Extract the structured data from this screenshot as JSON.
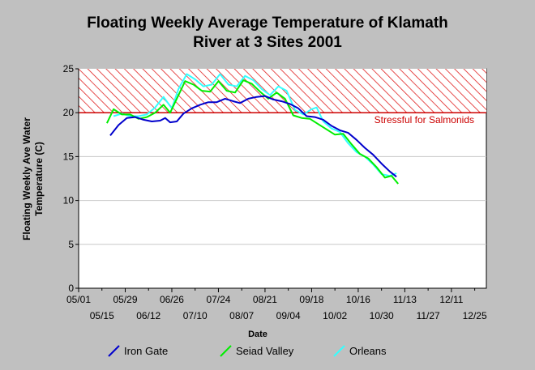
{
  "chart_data": {
    "type": "line",
    "title_line1": "Floating Weekly Average Temperature of Klamath",
    "title_line2": "River at 3 Sites 2001",
    "ylabel_line1": "Floating Weekly Ave Water",
    "ylabel_line2": "Temperature (C)",
    "xlabel": "Date",
    "ylim": [
      0,
      25
    ],
    "y_ticks": [
      0,
      5,
      10,
      15,
      20,
      25
    ],
    "x_range_dates": [
      "2001-05-01",
      "2002-01-01"
    ],
    "x_ticks_upper": [
      {
        "date": "2001-05-01",
        "label": "05/01"
      },
      {
        "date": "2001-05-29",
        "label": "05/29"
      },
      {
        "date": "2001-06-26",
        "label": "06/26"
      },
      {
        "date": "2001-07-24",
        "label": "07/24"
      },
      {
        "date": "2001-08-21",
        "label": "08/21"
      },
      {
        "date": "2001-09-18",
        "label": "09/18"
      },
      {
        "date": "2001-10-16",
        "label": "10/16"
      },
      {
        "date": "2001-11-13",
        "label": "11/13"
      },
      {
        "date": "2001-12-11",
        "label": "12/11"
      }
    ],
    "x_ticks_lower": [
      {
        "date": "2001-05-15",
        "label": "05/15"
      },
      {
        "date": "2001-06-12",
        "label": "06/12"
      },
      {
        "date": "2001-07-10",
        "label": "07/10"
      },
      {
        "date": "2001-08-07",
        "label": "08/07"
      },
      {
        "date": "2001-09-04",
        "label": "09/04"
      },
      {
        "date": "2001-10-02",
        "label": "10/02"
      },
      {
        "date": "2001-10-30",
        "label": "10/30"
      },
      {
        "date": "2001-11-27",
        "label": "11/27"
      },
      {
        "date": "2001-12-25",
        "label": "12/25"
      }
    ],
    "grid": true,
    "legend_position": "bottom",
    "threshold": {
      "y_from": 20,
      "y_to": 25,
      "label": "Stressful for Salmonids",
      "color": "#cc0000"
    },
    "series": [
      {
        "name": "Iron Gate",
        "color": "#0000cc",
        "points": [
          [
            "2001-05-20",
            17.4
          ],
          [
            "2001-05-25",
            18.6
          ],
          [
            "2001-05-30",
            19.4
          ],
          [
            "2001-06-04",
            19.5
          ],
          [
            "2001-06-09",
            19.2
          ],
          [
            "2001-06-14",
            19.0
          ],
          [
            "2001-06-19",
            19.1
          ],
          [
            "2001-06-22",
            19.4
          ],
          [
            "2001-06-25",
            18.9
          ],
          [
            "2001-06-29",
            19.0
          ],
          [
            "2001-07-03",
            19.9
          ],
          [
            "2001-07-08",
            20.5
          ],
          [
            "2001-07-13",
            20.9
          ],
          [
            "2001-07-18",
            21.2
          ],
          [
            "2001-07-23",
            21.2
          ],
          [
            "2001-07-28",
            21.6
          ],
          [
            "2001-08-02",
            21.3
          ],
          [
            "2001-08-06",
            21.1
          ],
          [
            "2001-08-11",
            21.6
          ],
          [
            "2001-08-16",
            21.8
          ],
          [
            "2001-08-21",
            21.9
          ],
          [
            "2001-08-26",
            21.5
          ],
          [
            "2001-08-31",
            21.3
          ],
          [
            "2001-09-05",
            21.0
          ],
          [
            "2001-09-10",
            20.5
          ],
          [
            "2001-09-15",
            19.6
          ],
          [
            "2001-09-20",
            19.5
          ],
          [
            "2001-09-25",
            19.2
          ],
          [
            "2001-09-30",
            18.5
          ],
          [
            "2001-10-05",
            18.0
          ],
          [
            "2001-10-10",
            17.7
          ],
          [
            "2001-10-15",
            16.9
          ],
          [
            "2001-10-20",
            16.0
          ],
          [
            "2001-10-25",
            15.2
          ],
          [
            "2001-10-30",
            14.2
          ],
          [
            "2001-11-04",
            13.3
          ],
          [
            "2001-11-08",
            12.7
          ]
        ]
      },
      {
        "name": "Seiad Valley",
        "color": "#00ee00",
        "points": [
          [
            "2001-05-18",
            18.8
          ],
          [
            "2001-05-22",
            20.4
          ],
          [
            "2001-05-27",
            19.8
          ],
          [
            "2001-06-01",
            19.8
          ],
          [
            "2001-06-06",
            19.3
          ],
          [
            "2001-06-11",
            19.5
          ],
          [
            "2001-06-16",
            20.0
          ],
          [
            "2001-06-21",
            20.9
          ],
          [
            "2001-06-25",
            20.0
          ],
          [
            "2001-06-29",
            21.6
          ],
          [
            "2001-07-04",
            23.6
          ],
          [
            "2001-07-09",
            23.2
          ],
          [
            "2001-07-14",
            22.5
          ],
          [
            "2001-07-19",
            22.4
          ],
          [
            "2001-07-24",
            23.6
          ],
          [
            "2001-07-29",
            22.5
          ],
          [
            "2001-08-03",
            22.3
          ],
          [
            "2001-08-08",
            23.7
          ],
          [
            "2001-08-13",
            23.3
          ],
          [
            "2001-08-18",
            22.4
          ],
          [
            "2001-08-23",
            21.6
          ],
          [
            "2001-08-28",
            22.3
          ],
          [
            "2001-09-02",
            21.6
          ],
          [
            "2001-09-07",
            19.7
          ],
          [
            "2001-09-12",
            19.4
          ],
          [
            "2001-09-17",
            19.3
          ],
          [
            "2001-09-22",
            18.7
          ],
          [
            "2001-09-27",
            18.1
          ],
          [
            "2001-10-02",
            17.5
          ],
          [
            "2001-10-07",
            17.6
          ],
          [
            "2001-10-12",
            16.4
          ],
          [
            "2001-10-17",
            15.3
          ],
          [
            "2001-10-22",
            14.8
          ],
          [
            "2001-10-27",
            13.8
          ],
          [
            "2001-11-01",
            12.6
          ],
          [
            "2001-11-05",
            12.8
          ],
          [
            "2001-11-09",
            11.9
          ]
        ]
      },
      {
        "name": "Orleans",
        "color": "#33ffff",
        "points": [
          [
            "2001-05-22",
            19.6
          ],
          [
            "2001-05-27",
            19.9
          ],
          [
            "2001-06-01",
            19.6
          ],
          [
            "2001-06-06",
            19.6
          ],
          [
            "2001-06-11",
            19.8
          ],
          [
            "2001-06-16",
            20.6
          ],
          [
            "2001-06-21",
            21.8
          ],
          [
            "2001-06-26",
            20.5
          ],
          [
            "2001-06-30",
            22.7
          ],
          [
            "2001-07-05",
            24.4
          ],
          [
            "2001-07-10",
            23.8
          ],
          [
            "2001-07-15",
            23.0
          ],
          [
            "2001-07-20",
            23.2
          ],
          [
            "2001-07-25",
            24.4
          ],
          [
            "2001-07-30",
            23.2
          ],
          [
            "2001-08-04",
            23.0
          ],
          [
            "2001-08-09",
            24.2
          ],
          [
            "2001-08-14",
            23.7
          ],
          [
            "2001-08-19",
            22.7
          ],
          [
            "2001-08-24",
            22.0
          ],
          [
            "2001-08-29",
            23.0
          ],
          [
            "2001-09-03",
            22.5
          ],
          [
            "2001-09-08",
            20.3
          ],
          [
            "2001-09-13",
            19.8
          ],
          [
            "2001-09-18",
            20.4
          ],
          [
            "2001-09-21",
            20.6
          ],
          [
            "2001-09-25",
            19.0
          ],
          [
            "2001-09-30",
            18.2
          ],
          [
            "2001-10-05",
            17.8
          ],
          [
            "2001-10-10",
            16.5
          ],
          [
            "2001-10-15",
            15.5
          ],
          [
            "2001-10-20",
            15.0
          ],
          [
            "2001-10-25",
            14.1
          ],
          [
            "2001-10-30",
            13.0
          ],
          [
            "2001-11-04",
            12.8
          ],
          [
            "2001-11-08",
            13.1
          ]
        ]
      }
    ]
  }
}
